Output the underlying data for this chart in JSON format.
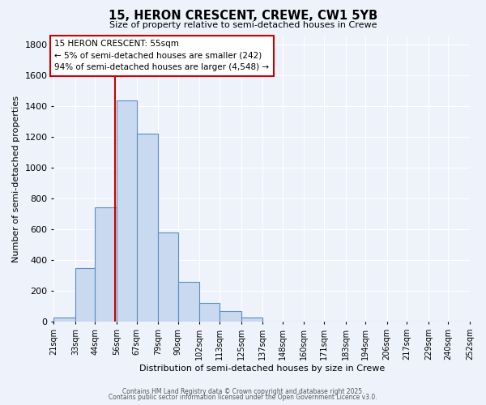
{
  "title": "15, HERON CRESCENT, CREWE, CW1 5YB",
  "subtitle": "Size of property relative to semi-detached houses in Crewe",
  "xlabel": "Distribution of semi-detached houses by size in Crewe",
  "ylabel": "Number of semi-detached properties",
  "bar_color": "#c9d9f0",
  "bar_edge_color": "#5b8ec4",
  "background_color": "#eef2fb",
  "grid_color": "#ffffff",
  "annotation_box_color": "#ffffff",
  "annotation_box_edge": "#cc0000",
  "vline_color": "#cc0000",
  "footer_line1": "Contains HM Land Registry data © Crown copyright and database right 2025.",
  "footer_line2": "Contains public sector information licensed under the Open Government Licence v3.0.",
  "annotation_title": "15 HERON CRESCENT: 55sqm",
  "annotation_line1": "← 5% of semi-detached houses are smaller (242)",
  "annotation_line2": "94% of semi-detached houses are larger (4,548) →",
  "bins": [
    21,
    33,
    44,
    56,
    67,
    79,
    90,
    102,
    113,
    125,
    137,
    148,
    160,
    171,
    183,
    194,
    206,
    217,
    229,
    240,
    252
  ],
  "counts": [
    30,
    350,
    740,
    1435,
    1220,
    580,
    258,
    125,
    68,
    30,
    0,
    0,
    0,
    0,
    0,
    0,
    0,
    0,
    0,
    0
  ],
  "property_size": 55,
  "ylim": [
    0,
    1850
  ],
  "yticks": [
    0,
    200,
    400,
    600,
    800,
    1000,
    1200,
    1400,
    1600,
    1800
  ],
  "tick_labels": [
    "21sqm",
    "33sqm",
    "44sqm",
    "56sqm",
    "67sqm",
    "79sqm",
    "90sqm",
    "102sqm",
    "113sqm",
    "125sqm",
    "137sqm",
    "148sqm",
    "160sqm",
    "171sqm",
    "183sqm",
    "194sqm",
    "206sqm",
    "217sqm",
    "229sqm",
    "240sqm",
    "252sqm"
  ]
}
